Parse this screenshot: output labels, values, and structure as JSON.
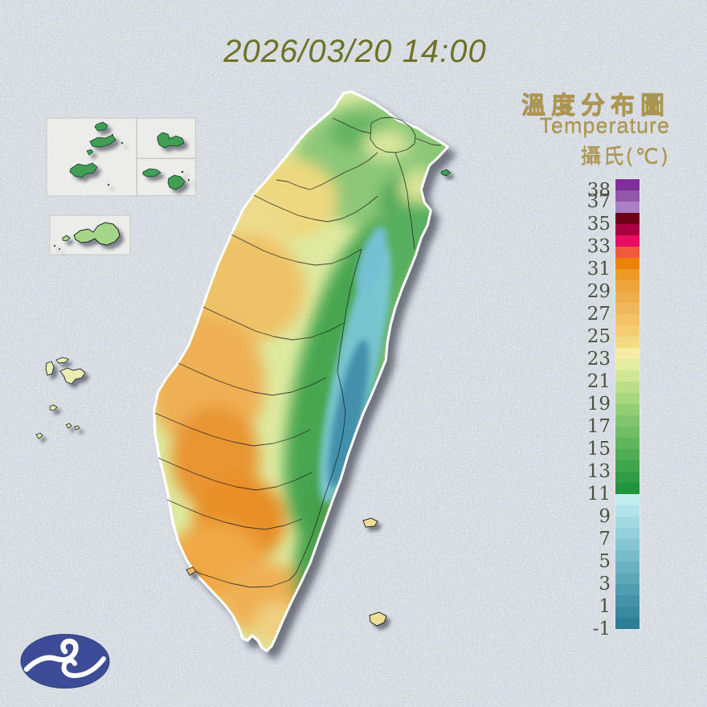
{
  "header": {
    "datetime": "2026/03/20 14:00"
  },
  "legend": {
    "title_zh": "溫度分布圖",
    "title_en": "Temperature",
    "unit_zh": "攝氏(℃)",
    "scale": {
      "min": -1,
      "max": 39,
      "labels": [
        38,
        37,
        35,
        33,
        31,
        29,
        27,
        25,
        23,
        21,
        19,
        17,
        15,
        13,
        11,
        9,
        7,
        5,
        3,
        1,
        -1
      ],
      "colors_top_to_bottom": [
        "#7e2f99",
        "#9257a8",
        "#aa7fc6",
        "#6d0016",
        "#a80040",
        "#e60d62",
        "#ef5a3c",
        "#ed8306",
        "#ee9b24",
        "#efa43c",
        "#f0ad4c",
        "#f1b75e",
        "#f3c267",
        "#f3cc74",
        "#f4da82",
        "#f5eca6",
        "#e3eda0",
        "#cfe794",
        "#bbdf88",
        "#a6d67d",
        "#93ce74",
        "#81c66c",
        "#70bd63",
        "#60b55b",
        "#4fad53",
        "#3fa54b",
        "#309c45",
        "#21943e",
        "#c2ebf0",
        "#b2e3ea",
        "#a2d9e3",
        "#94cfdc",
        "#86c5d3",
        "#78bbca",
        "#6ab1c1",
        "#5da7b9",
        "#4f9db0",
        "#4493a8",
        "#39899f",
        "#2e7f96"
      ]
    }
  },
  "map": {
    "colors": {
      "sea_background": "#ccd4da",
      "island_base": "#ddeaa0",
      "west_plain_orange": "#efa845",
      "mountain_green": "#46a650",
      "ridge_cyan": "#7cc8da",
      "ridge_blue": "#4390ac",
      "inset_box_bg": "#ececea",
      "inset_island_green": "#3f9e55",
      "kinmen_green": "#a6d488",
      "outlying_island_yellow": "#e9efb4",
      "coastline": "#ffffff",
      "county_boundary": "#1f1f1f"
    }
  },
  "logo": {
    "background": "#3c4c96",
    "mark": "#ffffff"
  }
}
